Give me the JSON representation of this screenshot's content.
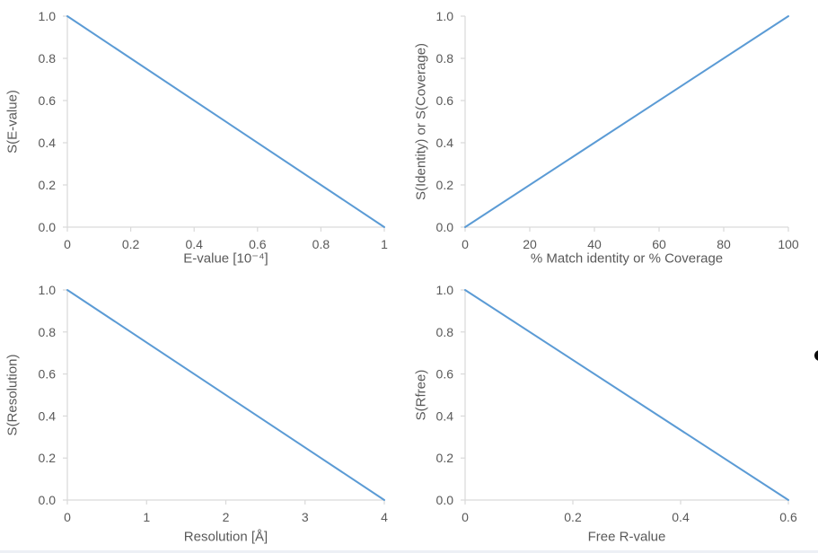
{
  "page": {
    "background": "#ffffff"
  },
  "style": {
    "line_color": "#5B9BD5",
    "axis_color": "#D9D9D9",
    "text_color": "#595959",
    "bullet_color": "#0b0b0b",
    "bottom_strip_color": "#edf0f5"
  },
  "decoration": {
    "bullet_icon": "partial bullet dot clipped at right edge"
  },
  "chart_data": [
    {
      "id": "s-evalue",
      "type": "line",
      "title": "",
      "xlabel": "E-value [10⁻⁴]",
      "ylabel": "S(E-value)",
      "xlim": [
        0,
        1
      ],
      "ylim": [
        0,
        1
      ],
      "grid": false,
      "legend": "none",
      "xticks": [
        0,
        0.2,
        0.4,
        0.6,
        0.8,
        1
      ],
      "xtick_labels": [
        "0",
        "0.2",
        "0.4",
        "0.6",
        "0.8",
        "1"
      ],
      "yticks": [
        0,
        0.2,
        0.4,
        0.6,
        0.8,
        1
      ],
      "ytick_labels": [
        "0.0",
        "0.2",
        "0.4",
        "0.6",
        "0.8",
        "1.0"
      ],
      "series": [
        {
          "name": "S(E-value)",
          "color": "#5B9BD5",
          "points": [
            [
              0,
              1.0
            ],
            [
              1,
              0.0
            ]
          ]
        }
      ]
    },
    {
      "id": "s-identity-or-coverage",
      "type": "line",
      "title": "",
      "xlabel": "% Match identity or % Coverage",
      "ylabel": "S(Identity) or S(Coverage)",
      "xlim": [
        0,
        100
      ],
      "ylim": [
        0,
        1
      ],
      "grid": false,
      "legend": "none",
      "xticks": [
        0,
        20,
        40,
        60,
        80,
        100
      ],
      "xtick_labels": [
        "0",
        "20",
        "40",
        "60",
        "80",
        "100"
      ],
      "yticks": [
        0,
        0.2,
        0.4,
        0.6,
        0.8,
        1
      ],
      "ytick_labels": [
        "0.0",
        "0.2",
        "0.4",
        "0.6",
        "0.8",
        "1.0"
      ],
      "series": [
        {
          "name": "S(Identity) or S(Coverage)",
          "color": "#5B9BD5",
          "points": [
            [
              0,
              0.0
            ],
            [
              100,
              1.0
            ]
          ]
        }
      ]
    },
    {
      "id": "s-resolution",
      "type": "line",
      "title": "",
      "xlabel": "Resolution [Å]",
      "ylabel": "S(Resolution)",
      "xlim": [
        0,
        4
      ],
      "ylim": [
        0,
        1
      ],
      "grid": false,
      "legend": "none",
      "xticks": [
        0,
        1,
        2,
        3,
        4
      ],
      "xtick_labels": [
        "0",
        "1",
        "2",
        "3",
        "4"
      ],
      "yticks": [
        0,
        0.2,
        0.4,
        0.6,
        0.8,
        1
      ],
      "ytick_labels": [
        "0.0",
        "0.2",
        "0.4",
        "0.6",
        "0.8",
        "1.0"
      ],
      "series": [
        {
          "name": "S(Resolution)",
          "color": "#5B9BD5",
          "points": [
            [
              0,
              1.0
            ],
            [
              4,
              0.0
            ]
          ]
        }
      ]
    },
    {
      "id": "s-rfree",
      "type": "line",
      "title": "",
      "xlabel": "Free R-value",
      "ylabel": "S(Rfree)",
      "xlim": [
        0,
        0.6
      ],
      "ylim": [
        0,
        1
      ],
      "grid": false,
      "legend": "none",
      "xticks": [
        0,
        0.2,
        0.4,
        0.6
      ],
      "xtick_labels": [
        "0",
        "0.2",
        "0.4",
        "0.6"
      ],
      "yticks": [
        0,
        0.2,
        0.4,
        0.6,
        0.8,
        1
      ],
      "ytick_labels": [
        "0.0",
        "0.2",
        "0.4",
        "0.6",
        "0.8",
        "1.0"
      ],
      "series": [
        {
          "name": "S(Rfree)",
          "color": "#5B9BD5",
          "points": [
            [
              0,
              1.0
            ],
            [
              0.6,
              0.0
            ]
          ]
        }
      ]
    }
  ]
}
